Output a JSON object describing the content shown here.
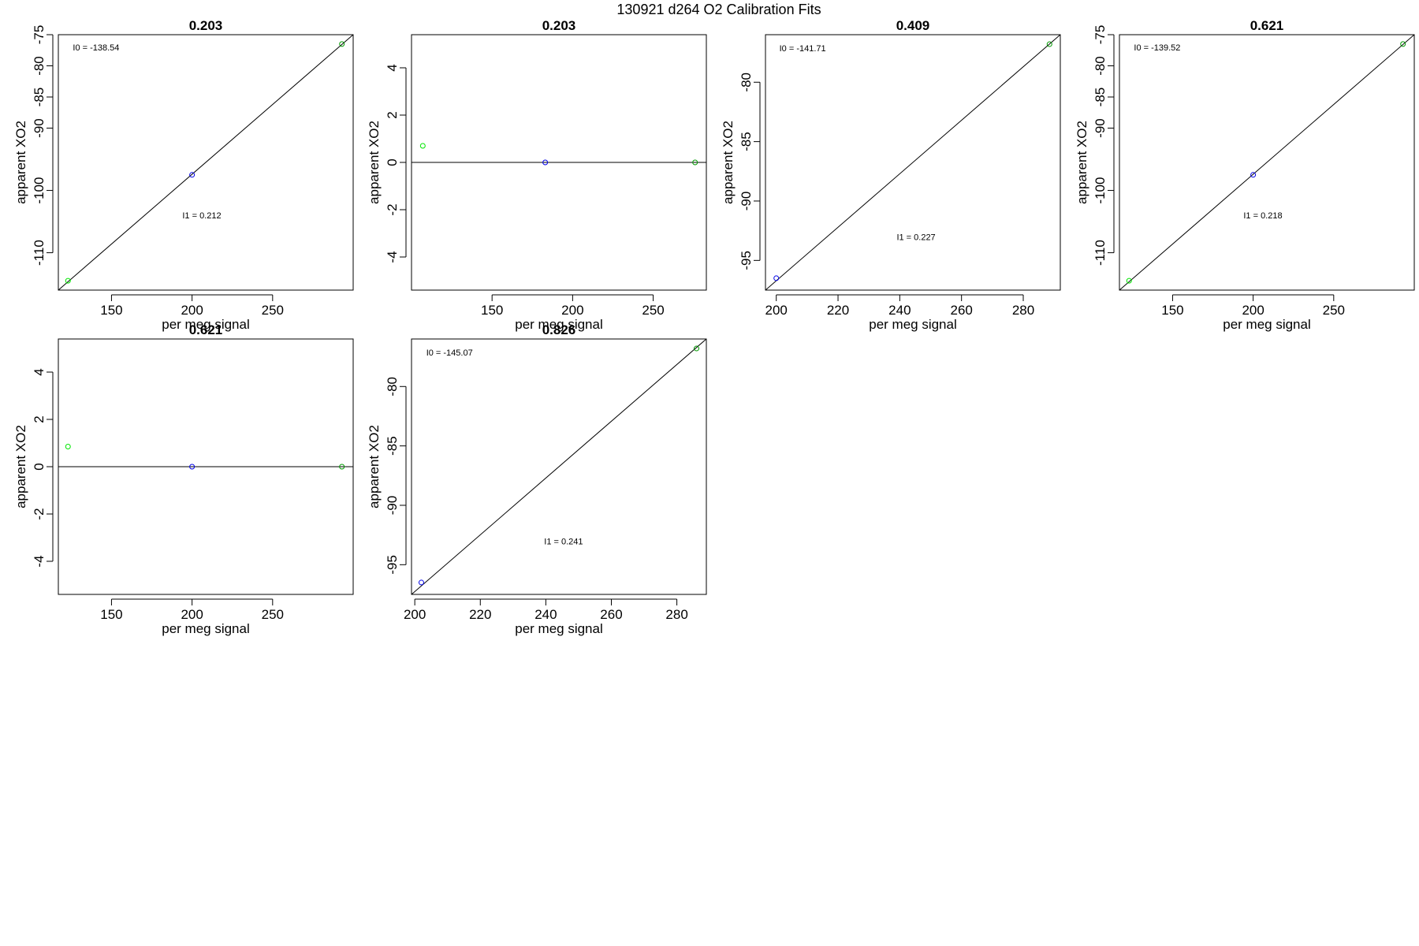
{
  "figure": {
    "title": "130921   d264   O2 Calibration Fits"
  },
  "colors": {
    "axis": "#000000",
    "fit_line": "#000000",
    "point_low": "#00e600",
    "point_mid": "#0000e6",
    "point_high": "#009900"
  },
  "chart_data": [
    {
      "type": "scatter",
      "title": "0.203",
      "xlabel": "per meg signal",
      "ylabel": "apparent XO2",
      "xlim": [
        117,
        300
      ],
      "ylim": [
        -116,
        -75
      ],
      "xticks": [
        150,
        200,
        250
      ],
      "yticks": [
        -110,
        -100,
        -90,
        -85,
        -80,
        -75
      ],
      "xtick_labels": [
        "150",
        "200",
        "250"
      ],
      "ytick_labels": [
        "-110",
        "-100",
        "-90",
        "-85",
        "-80",
        "-75"
      ],
      "fit_line": {
        "x1": 117,
        "y1": -116,
        "x2": 300,
        "y2": -75
      },
      "points": [
        {
          "x": 123,
          "y": -114.5,
          "color_key": "point_low"
        },
        {
          "x": 200,
          "y": -97.5,
          "color_key": "point_mid"
        },
        {
          "x": 293,
          "y": -76.5,
          "color_key": "point_high"
        }
      ],
      "annotations": [
        {
          "text": "I0 =  -138.54",
          "x": 126,
          "y": -77.5
        },
        {
          "text": "I1 =  0.212",
          "x": 194,
          "y": -104.5
        }
      ]
    },
    {
      "type": "scatter",
      "title": "0.203",
      "xlabel": "per meg signal",
      "ylabel": "apparent XO2",
      "xlim": [
        100,
        283
      ],
      "ylim": [
        -5.4,
        5.4
      ],
      "xticks": [
        150,
        200,
        250
      ],
      "yticks": [
        -4,
        -2,
        0,
        2,
        4
      ],
      "xtick_labels": [
        "150",
        "200",
        "250"
      ],
      "ytick_labels": [
        "-4",
        "-2",
        "0",
        "2",
        "4"
      ],
      "hline": 0,
      "points": [
        {
          "x": 107,
          "y": 0.7,
          "color_key": "point_low"
        },
        {
          "x": 183,
          "y": 0.0,
          "color_key": "point_mid"
        },
        {
          "x": 276,
          "y": 0.0,
          "color_key": "point_high"
        }
      ],
      "annotations": []
    },
    {
      "type": "scatter",
      "title": "0.409",
      "xlabel": "per meg signal",
      "ylabel": "apparent XO2",
      "xlim": [
        196.5,
        292
      ],
      "ylim": [
        -97.5,
        -76
      ],
      "xticks": [
        200,
        220,
        240,
        260,
        280
      ],
      "yticks": [
        -95,
        -90,
        -85,
        -80
      ],
      "xtick_labels": [
        "200",
        "220",
        "240",
        "260",
        "280"
      ],
      "ytick_labels": [
        "-95",
        "-90",
        "-85",
        "-80"
      ],
      "fit_line": {
        "x1": 196.5,
        "y1": -97.5,
        "x2": 292,
        "y2": -76
      },
      "points": [
        {
          "x": 200,
          "y": -96.5,
          "color_key": "point_mid"
        },
        {
          "x": 288.5,
          "y": -76.8,
          "color_key": "point_high"
        }
      ],
      "annotations": [
        {
          "text": "I0 =  -141.71",
          "x": 201,
          "y": -77.4
        },
        {
          "text": "I1 =  0.227",
          "x": 239,
          "y": -93.3
        }
      ]
    },
    {
      "type": "scatter",
      "title": "0.621",
      "xlabel": "per meg signal",
      "ylabel": "apparent XO2",
      "xlim": [
        117,
        300
      ],
      "ylim": [
        -116,
        -75
      ],
      "xticks": [
        150,
        200,
        250
      ],
      "yticks": [
        -110,
        -100,
        -90,
        -85,
        -80,
        -75
      ],
      "xtick_labels": [
        "150",
        "200",
        "250"
      ],
      "ytick_labels": [
        "-110",
        "-100",
        "-90",
        "-85",
        "-80",
        "-75"
      ],
      "fit_line": {
        "x1": 117,
        "y1": -116,
        "x2": 300,
        "y2": -75
      },
      "points": [
        {
          "x": 123,
          "y": -114.5,
          "color_key": "point_low"
        },
        {
          "x": 200,
          "y": -97.5,
          "color_key": "point_mid"
        },
        {
          "x": 293,
          "y": -76.5,
          "color_key": "point_high"
        }
      ],
      "annotations": [
        {
          "text": "I0 =  -139.52",
          "x": 126,
          "y": -77.5
        },
        {
          "text": "I1 =  0.218",
          "x": 194,
          "y": -104.5
        }
      ]
    },
    {
      "type": "scatter",
      "title": "0.621",
      "xlabel": "per meg signal",
      "ylabel": "apparent XO2",
      "xlim": [
        117,
        300
      ],
      "ylim": [
        -5.4,
        5.4
      ],
      "xticks": [
        150,
        200,
        250
      ],
      "yticks": [
        -4,
        -2,
        0,
        2,
        4
      ],
      "xtick_labels": [
        "150",
        "200",
        "250"
      ],
      "ytick_labels": [
        "-4",
        "-2",
        "0",
        "2",
        "4"
      ],
      "hline": 0,
      "points": [
        {
          "x": 123,
          "y": 0.85,
          "color_key": "point_low"
        },
        {
          "x": 200,
          "y": 0.0,
          "color_key": "point_mid"
        },
        {
          "x": 293,
          "y": 0.0,
          "color_key": "point_high"
        }
      ],
      "annotations": []
    },
    {
      "type": "scatter",
      "title": "0.826",
      "xlabel": "per meg signal",
      "ylabel": "apparent XO2",
      "xlim": [
        199,
        289
      ],
      "ylim": [
        -97.5,
        -76
      ],
      "xticks": [
        200,
        220,
        240,
        260,
        280
      ],
      "yticks": [
        -95,
        -90,
        -85,
        -80
      ],
      "xtick_labels": [
        "200",
        "220",
        "240",
        "260",
        "280"
      ],
      "ytick_labels": [
        "-95",
        "-90",
        "-85",
        "-80"
      ],
      "fit_line": {
        "x1": 199,
        "y1": -97.5,
        "x2": 289,
        "y2": -76
      },
      "points": [
        {
          "x": 202,
          "y": -96.5,
          "color_key": "point_mid"
        },
        {
          "x": 286,
          "y": -76.8,
          "color_key": "point_high"
        }
      ],
      "annotations": [
        {
          "text": "I0 =  -145.07",
          "x": 203.5,
          "y": -77.4
        },
        {
          "text": "I1 =  0.241",
          "x": 239.5,
          "y": -93.3
        }
      ]
    }
  ]
}
